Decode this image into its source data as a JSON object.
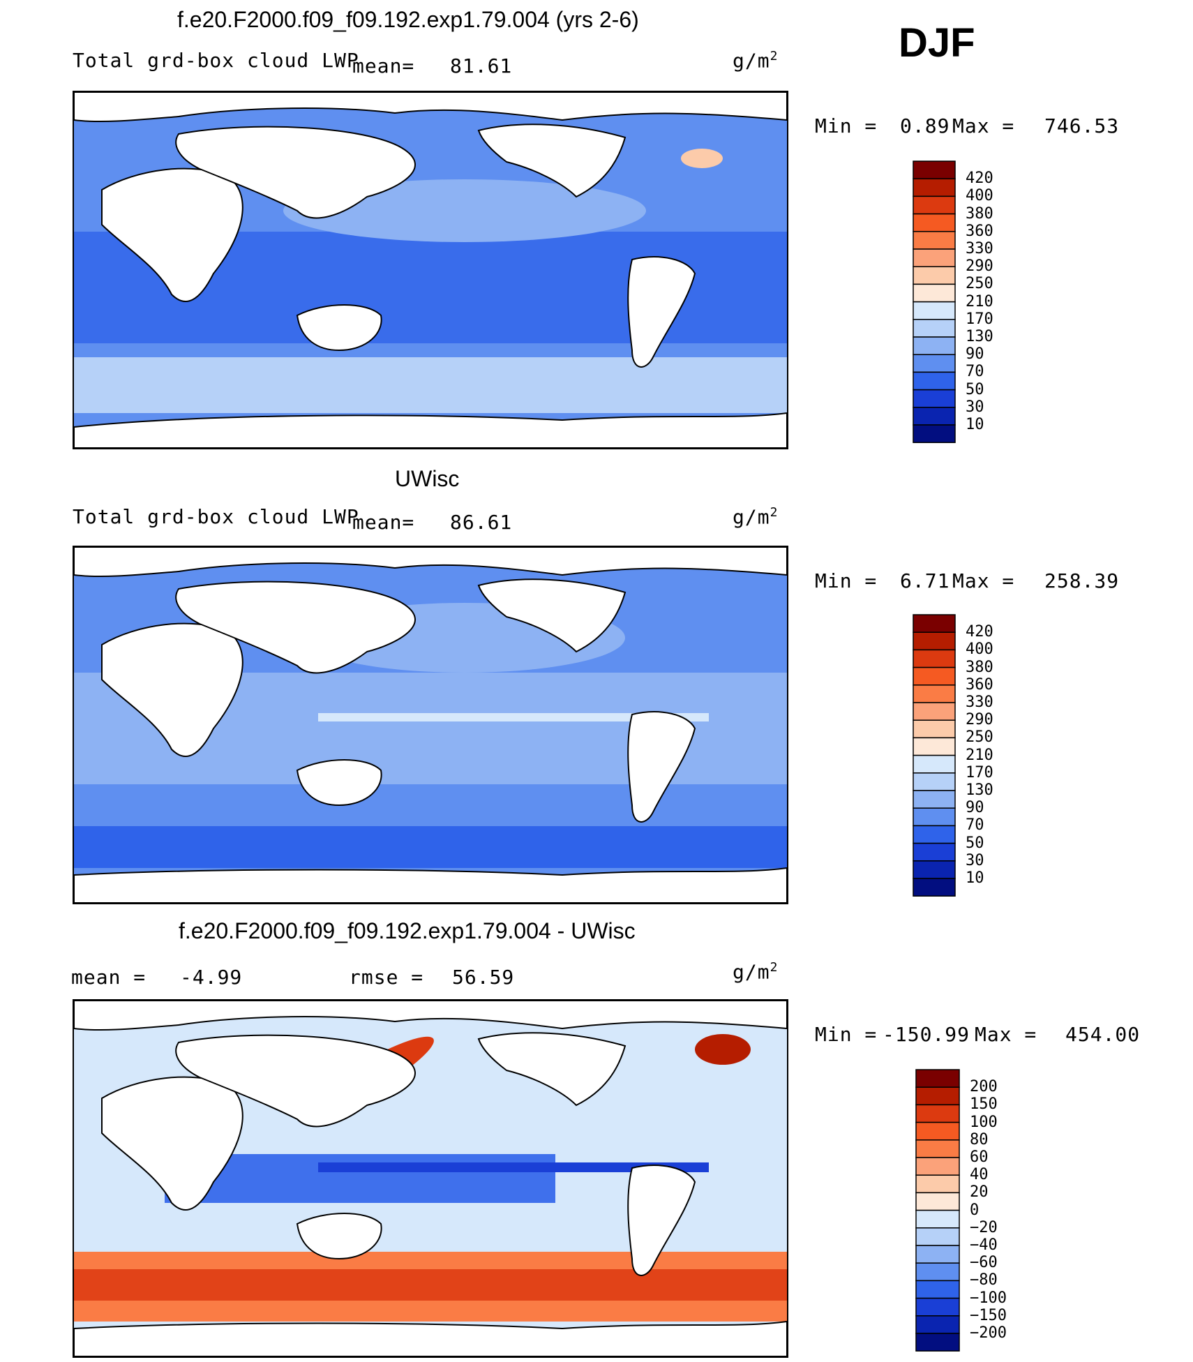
{
  "season": "DJF",
  "chart_data": [
    {
      "type": "heatmap",
      "title": "f.e20.F2000.f09_f09.192.exp1.79.004 (yrs 2-6)",
      "variable_label": "Total grd-box cloud LWP",
      "mean_label": "mean=",
      "mean_value": "81.61",
      "units": "g/m",
      "units_exp": "2",
      "min_label": "Min =",
      "min_value": "0.89",
      "max_label": "Max =",
      "max_value": "746.53",
      "contour_levels": [
        "420",
        "400",
        "380",
        "360",
        "330",
        "290",
        "250",
        "210",
        "170",
        "130",
        "90",
        "70",
        "50",
        "30",
        "10"
      ],
      "level_colors": [
        "#7a0000",
        "#b51d00",
        "#dc3a10",
        "#f55a22",
        "#fa7c45",
        "#fba27a",
        "#fccbaa",
        "#fde8d8",
        "#d6e8fb",
        "#b6d1f8",
        "#8db2f3",
        "#5f8ff0",
        "#2f63ea",
        "#1a3fd6",
        "#0a24b0",
        "#020e80"
      ]
    },
    {
      "type": "heatmap",
      "title": "UWisc",
      "variable_label": "Total grd-box cloud LWP",
      "mean_label": "mean=",
      "mean_value": "86.61",
      "units": "g/m",
      "units_exp": "2",
      "min_label": "Min =",
      "min_value": "6.71",
      "max_label": "Max =",
      "max_value": "258.39",
      "contour_levels": [
        "420",
        "400",
        "380",
        "360",
        "330",
        "290",
        "250",
        "210",
        "170",
        "130",
        "90",
        "70",
        "50",
        "30",
        "10"
      ],
      "level_colors": [
        "#7a0000",
        "#b51d00",
        "#dc3a10",
        "#f55a22",
        "#fa7c45",
        "#fba27a",
        "#fccbaa",
        "#fde8d8",
        "#d6e8fb",
        "#b6d1f8",
        "#8db2f3",
        "#5f8ff0",
        "#2f63ea",
        "#1a3fd6",
        "#0a24b0",
        "#020e80"
      ]
    },
    {
      "type": "heatmap",
      "title": "f.e20.F2000.f09_f09.192.exp1.79.004 - UWisc",
      "mean_label": "mean =",
      "mean_value": "-4.99",
      "rmse_label": "rmse =",
      "rmse_value": "56.59",
      "units": "g/m",
      "units_exp": "2",
      "min_label": "Min =",
      "min_value": "-150.99",
      "max_label": "Max =",
      "max_value": "454.00",
      "contour_levels": [
        "200",
        "150",
        "100",
        "80",
        "60",
        "40",
        "20",
        "0",
        "-20",
        "-40",
        "-60",
        "-80",
        "-100",
        "-150",
        "-200"
      ],
      "level_colors": [
        "#7a0000",
        "#b51d00",
        "#dc3a10",
        "#f55a22",
        "#fa7c45",
        "#fba27a",
        "#fccbaa",
        "#fde8d8",
        "#d6e8fb",
        "#b6d1f8",
        "#8db2f3",
        "#5f8ff0",
        "#2f63ea",
        "#1a3fd6",
        "#0a24b0",
        "#020e80"
      ]
    }
  ]
}
